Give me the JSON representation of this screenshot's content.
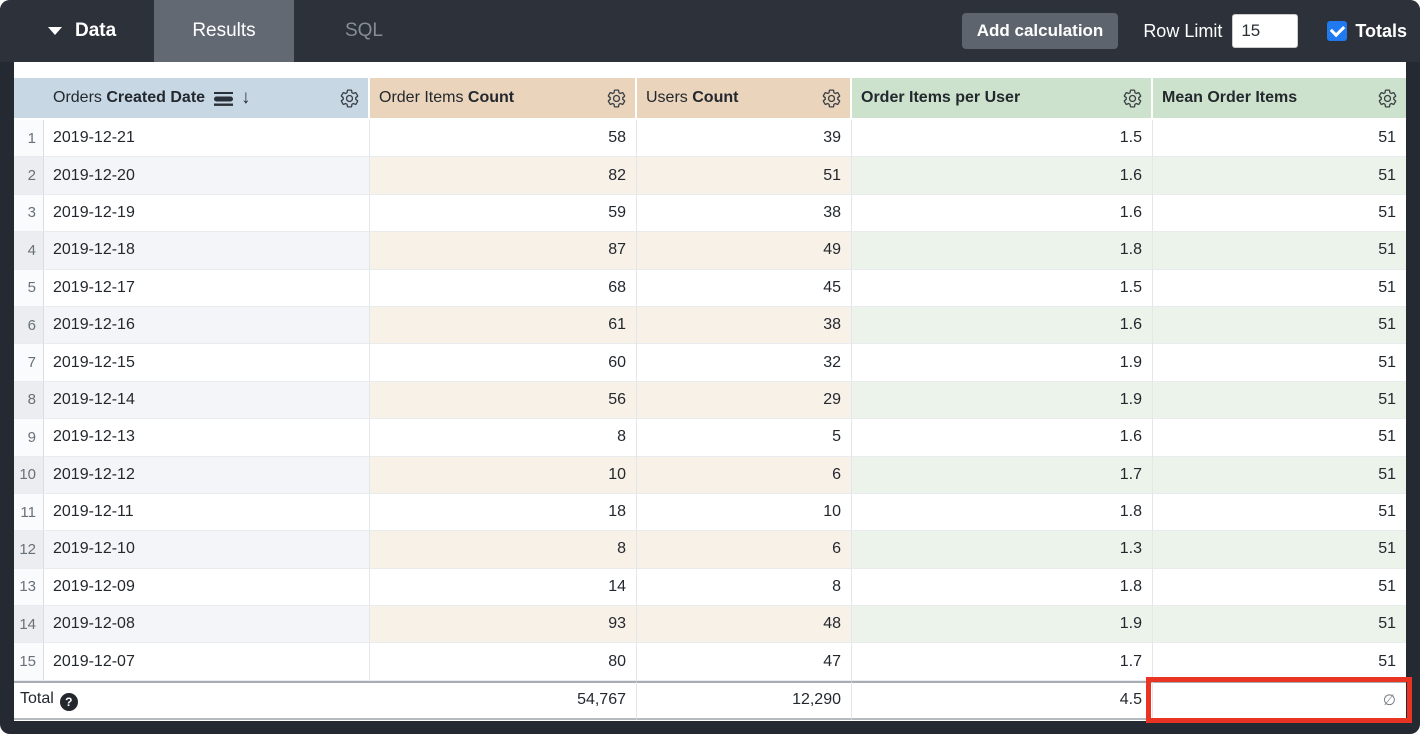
{
  "toolbar": {
    "data_menu_label": "Data",
    "tabs": [
      {
        "label": "Results",
        "active": true
      },
      {
        "label": "SQL",
        "active": false
      }
    ],
    "add_calculation_label": "Add calculation",
    "row_limit_label": "Row Limit",
    "row_limit_value": "15",
    "totals_label": "Totals",
    "totals_checked": true
  },
  "table": {
    "headers": [
      {
        "prefix": "Orders ",
        "title": "Created Date",
        "tone": "dimension",
        "sort": "desc",
        "icons": [
          "date-group-icon",
          "sort-desc-arrow",
          "gear-icon"
        ]
      },
      {
        "prefix": "Order Items ",
        "title": "Count",
        "tone": "tan",
        "icons": [
          "gear-icon"
        ]
      },
      {
        "prefix": "Users ",
        "title": "Count",
        "tone": "tan",
        "icons": [
          "gear-icon"
        ]
      },
      {
        "prefix": "",
        "title": "Order Items per User",
        "tone": "green",
        "icons": [
          "gear-icon"
        ]
      },
      {
        "prefix": "",
        "title": "Mean Order Items",
        "tone": "green",
        "icons": [
          "gear-icon"
        ]
      }
    ],
    "rows": [
      [
        "1",
        "2019-12-21",
        "58",
        "39",
        "1.5",
        "51"
      ],
      [
        "2",
        "2019-12-20",
        "82",
        "51",
        "1.6",
        "51"
      ],
      [
        "3",
        "2019-12-19",
        "59",
        "38",
        "1.6",
        "51"
      ],
      [
        "4",
        "2019-12-18",
        "87",
        "49",
        "1.8",
        "51"
      ],
      [
        "5",
        "2019-12-17",
        "68",
        "45",
        "1.5",
        "51"
      ],
      [
        "6",
        "2019-12-16",
        "61",
        "38",
        "1.6",
        "51"
      ],
      [
        "7",
        "2019-12-15",
        "60",
        "32",
        "1.9",
        "51"
      ],
      [
        "8",
        "2019-12-14",
        "56",
        "29",
        "1.9",
        "51"
      ],
      [
        "9",
        "2019-12-13",
        "8",
        "5",
        "1.6",
        "51"
      ],
      [
        "10",
        "2019-12-12",
        "10",
        "6",
        "1.7",
        "51"
      ],
      [
        "11",
        "2019-12-11",
        "18",
        "10",
        "1.8",
        "51"
      ],
      [
        "12",
        "2019-12-10",
        "8",
        "6",
        "1.3",
        "51"
      ],
      [
        "13",
        "2019-12-09",
        "14",
        "8",
        "1.8",
        "51"
      ],
      [
        "14",
        "2019-12-08",
        "93",
        "48",
        "1.9",
        "51"
      ],
      [
        "15",
        "2019-12-07",
        "80",
        "47",
        "1.7",
        "51"
      ]
    ],
    "total": {
      "label": "Total",
      "help_icon": "?",
      "order_items_count": "54,767",
      "users_count": "12,290",
      "order_items_per_user": "4.5",
      "mean_order_items": "∅"
    }
  },
  "annotation": {
    "type": "highlight-box",
    "color": "#ea3423",
    "target": "total-mean-order-items-cell"
  },
  "colors": {
    "topbar_bg": "#2c313a",
    "active_tab_bg": "#636973",
    "header_dimension": "#c7d7e4",
    "header_measure_tan": "#ead4bc",
    "header_measure_green": "#cde2cc",
    "checkbox_blue": "#2079ef"
  }
}
